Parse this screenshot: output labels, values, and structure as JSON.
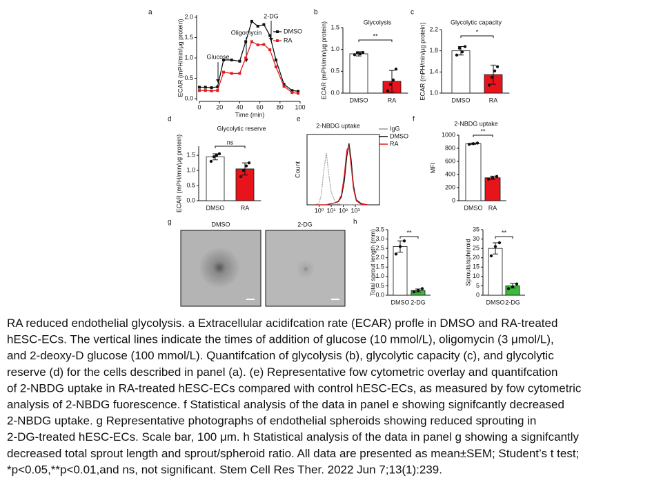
{
  "chart_data": [
    {
      "type": "line",
      "panel_label": "a",
      "x_label": "Time (min)",
      "y_label": "ECAR (mPH/min/µg protein)",
      "annotations": [
        "Glucose",
        "Oligomycin",
        "2-DG"
      ],
      "x": [
        0,
        6,
        12,
        18,
        24,
        32,
        40,
        46,
        52,
        58,
        64,
        70,
        76,
        84,
        92,
        98
      ],
      "series": [
        {
          "name": "DMSO",
          "color": "#111111",
          "values": [
            0.28,
            0.28,
            0.27,
            0.29,
            0.95,
            0.95,
            0.92,
            1.4,
            1.9,
            1.78,
            1.82,
            1.55,
            0.95,
            0.35,
            0.2,
            0.18
          ]
        },
        {
          "name": "RA",
          "color": "#e41a1c",
          "values": [
            0.2,
            0.2,
            0.19,
            0.2,
            0.65,
            0.62,
            0.62,
            1.0,
            1.4,
            1.32,
            1.33,
            1.2,
            0.78,
            0.3,
            0.15,
            0.13
          ]
        }
      ],
      "xlim": [
        0,
        100
      ],
      "xticks": [
        0,
        20,
        40,
        60,
        80,
        100
      ],
      "ylim": [
        0,
        2
      ],
      "yticks": [
        {
          "value": 0,
          "label": "0.0"
        },
        {
          "value": 0.5,
          "label": "0.5"
        },
        {
          "value": 1,
          "label": "1.0"
        },
        {
          "value": 1.5,
          "label": "1.5"
        },
        {
          "value": 2,
          "label": "2.0"
        }
      ]
    },
    {
      "type": "bar",
      "panel_label": "b",
      "title": "Glycolysis",
      "y_label": "ECAR (mPH/min/µg protein)",
      "categories": [
        "DMSO",
        "RA"
      ],
      "values": [
        0.9,
        0.27
      ],
      "errors": [
        0.05,
        0.25
      ],
      "points": [
        [
          0.88,
          0.92,
          0.9,
          0.93
        ],
        [
          0.05,
          0.2,
          0.3,
          0.55
        ]
      ],
      "colors": [
        "#ffffff",
        "#e8141b"
      ],
      "ylim": [
        0,
        1.5
      ],
      "yticks": [
        {
          "value": 0,
          "label": "0.0"
        },
        {
          "value": 0.5,
          "label": "0.5"
        },
        {
          "value": 1,
          "label": "1.0"
        },
        {
          "value": 1.5,
          "label": "1.5"
        }
      ],
      "significance": "**"
    },
    {
      "type": "bar",
      "panel_label": "c",
      "title": "Glycolytic capacity",
      "y_label": "ECAR (mPH/min/µg protein)",
      "categories": [
        "DMSO",
        "RA"
      ],
      "values": [
        1.8,
        1.35
      ],
      "errors": [
        0.08,
        0.18
      ],
      "points": [
        [
          1.72,
          1.85,
          1.78,
          1.88
        ],
        [
          1.15,
          1.3,
          1.42,
          1.5
        ]
      ],
      "colors": [
        "#ffffff",
        "#e8141b"
      ],
      "ylim": [
        1,
        2.2
      ],
      "yticks": [
        {
          "value": 1,
          "label": "1.0"
        },
        1.4,
        1.8,
        2.2
      ],
      "significance": "*"
    },
    {
      "type": "bar",
      "panel_label": "d",
      "title": "Glycolytic reserve",
      "y_label": "ECAR (mPH/min/µg protein)",
      "categories": [
        "DMSO",
        "RA"
      ],
      "values": [
        1.45,
        1.05
      ],
      "errors": [
        0.1,
        0.2
      ],
      "points": [
        [
          1.3,
          1.45,
          1.5,
          1.55
        ],
        [
          0.8,
          1.0,
          1.15,
          1.25
        ]
      ],
      "colors": [
        "#ffffff",
        "#e8141b"
      ],
      "ylim": [
        0,
        1.8
      ],
      "yticks": [
        {
          "value": 0,
          "label": "0.0"
        },
        0.5,
        {
          "value": 1,
          "label": "1.0"
        },
        1.5
      ],
      "significance": "ns"
    },
    {
      "type": "histogram-overlay",
      "panel_label": "e",
      "title": "2-NBDG uptake",
      "y_label": "Count",
      "xscale": "log",
      "x": [
        0.5,
        1,
        1.5,
        2.5,
        4,
        6,
        10,
        20,
        40,
        70,
        120,
        200,
        300,
        450,
        700,
        1200,
        3000,
        10000
      ],
      "series": [
        {
          "name": "IgG",
          "color": "#999999",
          "values": [
            0,
            3,
            15,
            55,
            80,
            50,
            20,
            6,
            2,
            0,
            0,
            0,
            0,
            0,
            0,
            0,
            0,
            0
          ]
        },
        {
          "name": "DMSO",
          "color": "#111111",
          "values": [
            0,
            0,
            0,
            0,
            0,
            1,
            2,
            3,
            5,
            12,
            35,
            75,
            95,
            70,
            30,
            8,
            2,
            0
          ]
        },
        {
          "name": "RA",
          "color": "#e41a1c",
          "values": [
            0,
            0,
            0,
            0,
            0,
            1,
            2,
            3,
            6,
            15,
            45,
            85,
            90,
            60,
            25,
            6,
            1,
            0
          ]
        }
      ],
      "xlim": [
        0.1,
        100000
      ],
      "xticks": [
        {
          "value": 1,
          "label": "10⁰"
        },
        {
          "value": 10,
          "label": "10¹"
        },
        {
          "value": 100,
          "label": "10²"
        },
        {
          "value": 1000,
          "label": "10³"
        }
      ],
      "ylim": [
        0,
        100
      ]
    },
    {
      "type": "bar",
      "panel_label": "f",
      "title": "2-NBDG uptake",
      "y_label": "MFI",
      "categories": [
        "DMSO",
        "RA"
      ],
      "values": [
        870,
        350
      ],
      "errors": [
        10,
        25
      ],
      "points": [
        [
          860,
          870,
          880
        ],
        [
          330,
          350,
          370
        ]
      ],
      "colors": [
        "#ffffff",
        "#e8141b"
      ],
      "ylim": [
        0,
        1000
      ],
      "yticks": [
        0,
        200,
        400,
        600,
        800,
        1000
      ],
      "significance": "**"
    },
    {
      "type": "bar",
      "panel_label": "h",
      "y_label": "Total sprout length (mm)",
      "categories": [
        "DMSO",
        "2-DG"
      ],
      "values": [
        2.6,
        0.25
      ],
      "errors": [
        0.3,
        0.08
      ],
      "points": [
        [
          2.2,
          2.6,
          2.9
        ],
        [
          0.18,
          0.25,
          0.35
        ]
      ],
      "colors": [
        "#ffffff",
        "#3cb93c"
      ],
      "ylim": [
        0,
        3.5
      ],
      "yticks": [
        {
          "value": 0,
          "label": "0.0"
        },
        0.5,
        {
          "value": 1,
          "label": "1.0"
        },
        1.5,
        {
          "value": 2,
          "label": "2.0"
        },
        2.5,
        {
          "value": 3,
          "label": "3.0"
        },
        3.5
      ],
      "significance": "**"
    },
    {
      "type": "bar",
      "y_label": "Sprouts/spheroid",
      "categories": [
        "DMSO",
        "2-DG"
      ],
      "values": [
        25,
        5
      ],
      "errors": [
        3,
        1.2
      ],
      "points": [
        [
          21,
          26,
          28
        ],
        [
          3.5,
          4.5,
          6
        ]
      ],
      "colors": [
        "#ffffff",
        "#3cb93c"
      ],
      "ylim": [
        0,
        35
      ],
      "yticks": [
        0,
        5,
        10,
        15,
        20,
        25,
        30,
        35
      ],
      "significance": "**"
    }
  ],
  "panel_g": {
    "panel_label": "g",
    "images": [
      {
        "label": "DMSO"
      },
      {
        "label": "2-DG"
      }
    ]
  },
  "caption": {
    "lines": [
      "RA reduced endothelial glycolysis. a Extracellular acidifcation rate (ECAR) profle in DMSO and RA-treated",
      "hESC-ECs. The vertical lines indicate the times of addition of glucose (10 mmol/L), oligomycin (3 μmol/L),",
      "and 2-deoxy-D glucose (100 mmol/L). Quantifcation of glycolysis (b), glycolytic capacity (c), and glycolytic",
      "reserve (d) for the cells described in panel (a). (e) Representative fow cytometric overlay and quantifcation",
      "of 2-NBDG uptake in RA-treated hESC-ECs compared with control hESC-ECs, as measured by fow cytometric",
      "analysis of 2-NBDG fuorescence. f Statistical analysis of the data in panel e showing signifcantly decreased",
      "2-NBDG uptake. g Representative photographs of endothelial spheroids showing reduced sprouting in",
      "2-DG-treated hESC-ECs. Scale bar, 100 μm. h Statistical analysis of the data in panel g showing a signifcantly",
      "decreased total sprout length and sprout/spheroid ratio. All data are presented as mean±SEM; Student’s t test;",
      "*p<0.05,**p<0.01,and ns, not significant. Stem Cell Res Ther. 2022 Jun 7;13(1):239."
    ]
  }
}
